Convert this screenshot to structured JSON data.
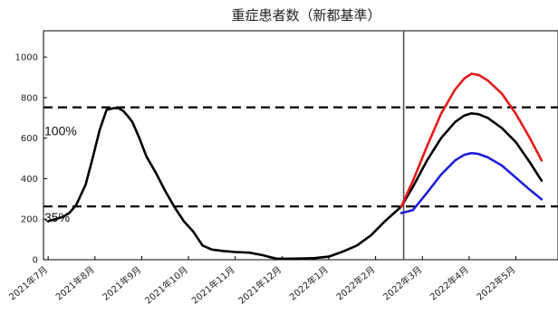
{
  "chart_data": {
    "type": "line",
    "title": "重症患者数（新都基準）",
    "xlabel": "",
    "ylabel": "",
    "ylim": [
      0,
      1130
    ],
    "yticks": [
      0,
      200,
      400,
      600,
      800,
      1000
    ],
    "x_tick_labels": [
      "2021年7月",
      "2021年8月",
      "2021年9月",
      "2021年10月",
      "2021年11月",
      "2021年12月",
      "2022年1月",
      "2022年2月",
      "2022年3月",
      "2022年4月",
      "2022年5月"
    ],
    "grid": false,
    "legend": "none",
    "vertical_marker_month": 7.6,
    "reference_lines": [
      {
        "label": "100%",
        "value": 752
      },
      {
        "label": "35%",
        "value": 263
      }
    ],
    "series": [
      {
        "color": "#000000",
        "points": [
          [
            0.0,
            190
          ],
          [
            0.15,
            200
          ],
          [
            0.3,
            210
          ],
          [
            0.45,
            230
          ],
          [
            0.6,
            270
          ],
          [
            0.8,
            370
          ],
          [
            0.95,
            500
          ],
          [
            1.1,
            640
          ],
          [
            1.25,
            740
          ],
          [
            1.4,
            748
          ],
          [
            1.5,
            748
          ],
          [
            1.6,
            735
          ],
          [
            1.7,
            710
          ],
          [
            1.8,
            680
          ],
          [
            1.95,
            600
          ],
          [
            2.1,
            510
          ],
          [
            2.3,
            430
          ],
          [
            2.5,
            340
          ],
          [
            2.7,
            260
          ],
          [
            2.9,
            190
          ],
          [
            3.1,
            140
          ],
          [
            3.3,
            70
          ],
          [
            3.5,
            50
          ],
          [
            3.75,
            43
          ],
          [
            4.0,
            38
          ],
          [
            4.3,
            35
          ],
          [
            4.6,
            22
          ],
          [
            4.75,
            12
          ],
          [
            4.9,
            5
          ],
          [
            5.1,
            5
          ],
          [
            5.4,
            6
          ],
          [
            5.7,
            8
          ],
          [
            6.0,
            15
          ],
          [
            6.3,
            40
          ],
          [
            6.6,
            70
          ],
          [
            6.9,
            120
          ],
          [
            7.2,
            190
          ],
          [
            7.55,
            262
          ]
        ]
      },
      {
        "color": "#000000",
        "points": [
          [
            7.55,
            262
          ],
          [
            7.8,
            360
          ],
          [
            8.1,
            490
          ],
          [
            8.4,
            600
          ],
          [
            8.7,
            680
          ],
          [
            8.9,
            712
          ],
          [
            9.05,
            722
          ],
          [
            9.2,
            718
          ],
          [
            9.4,
            700
          ],
          [
            9.7,
            650
          ],
          [
            10.0,
            580
          ],
          [
            10.3,
            480
          ],
          [
            10.55,
            390
          ]
        ]
      },
      {
        "color": "#e41a1c",
        "points": [
          [
            7.55,
            262
          ],
          [
            7.8,
            390
          ],
          [
            8.1,
            560
          ],
          [
            8.4,
            720
          ],
          [
            8.7,
            840
          ],
          [
            8.9,
            895
          ],
          [
            9.05,
            918
          ],
          [
            9.2,
            912
          ],
          [
            9.4,
            885
          ],
          [
            9.7,
            820
          ],
          [
            10.0,
            720
          ],
          [
            10.3,
            600
          ],
          [
            10.55,
            490
          ]
        ]
      },
      {
        "color": "#1f1fdb",
        "points": [
          [
            7.55,
            230
          ],
          [
            7.8,
            245
          ],
          [
            8.1,
            330
          ],
          [
            8.4,
            420
          ],
          [
            8.7,
            490
          ],
          [
            8.9,
            518
          ],
          [
            9.05,
            526
          ],
          [
            9.2,
            522
          ],
          [
            9.4,
            505
          ],
          [
            9.7,
            465
          ],
          [
            10.0,
            405
          ],
          [
            10.3,
            345
          ],
          [
            10.55,
            298
          ]
        ]
      }
    ]
  }
}
